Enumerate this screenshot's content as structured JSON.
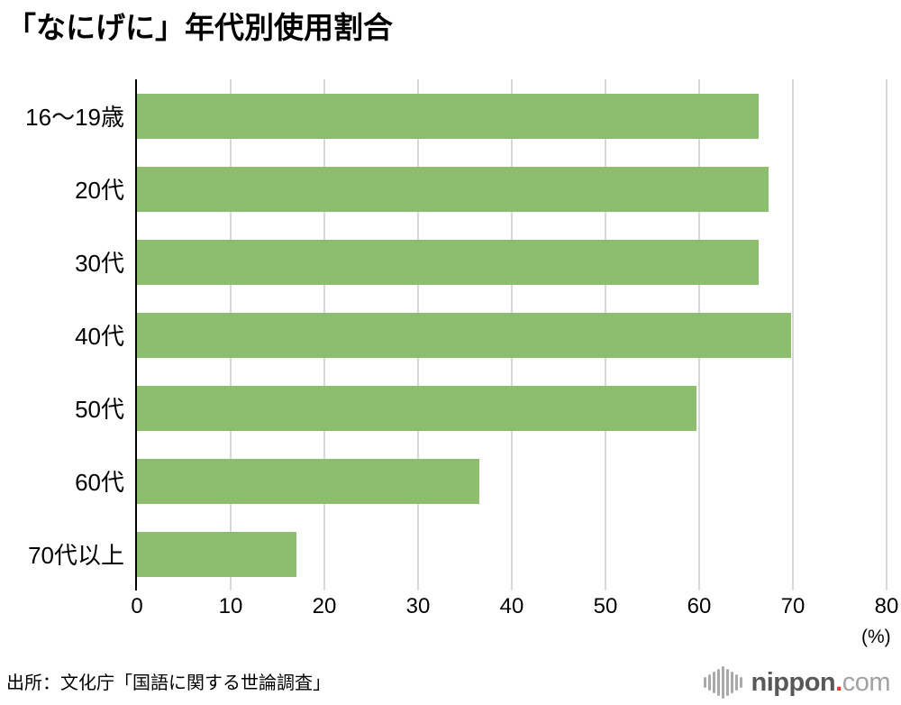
{
  "title": "「なにげに」年代別使用割合",
  "source": "出所：文化庁「国語に関する世論調査」",
  "logo": {
    "icon": "soundwave-bars-icon",
    "brand_bold": "nippon",
    "brand_dot": ".",
    "brand_rest": "com",
    "dot_color": "#e8382d",
    "bold_color": "#595757",
    "rest_color": "#a2a2a2",
    "icon_color": "#a9a9a9"
  },
  "chart_data": {
    "type": "bar",
    "orientation": "horizontal",
    "title": "「なにげに」年代別使用割合",
    "categories": [
      "16〜19歳",
      "20代",
      "30代",
      "40代",
      "50代",
      "60代",
      "70代以上"
    ],
    "values": [
      66.3,
      67.4,
      66.3,
      69.8,
      59.7,
      36.5,
      17.0
    ],
    "xlabel": "(%)",
    "xlim": [
      0,
      80
    ],
    "xticks": [
      0,
      10,
      20,
      30,
      40,
      50,
      60,
      70,
      80
    ],
    "bar_color": "#8cbe6e",
    "grid": true,
    "gridline_color": "#d8d8d8",
    "axis_color": "#000000",
    "legend": false
  }
}
